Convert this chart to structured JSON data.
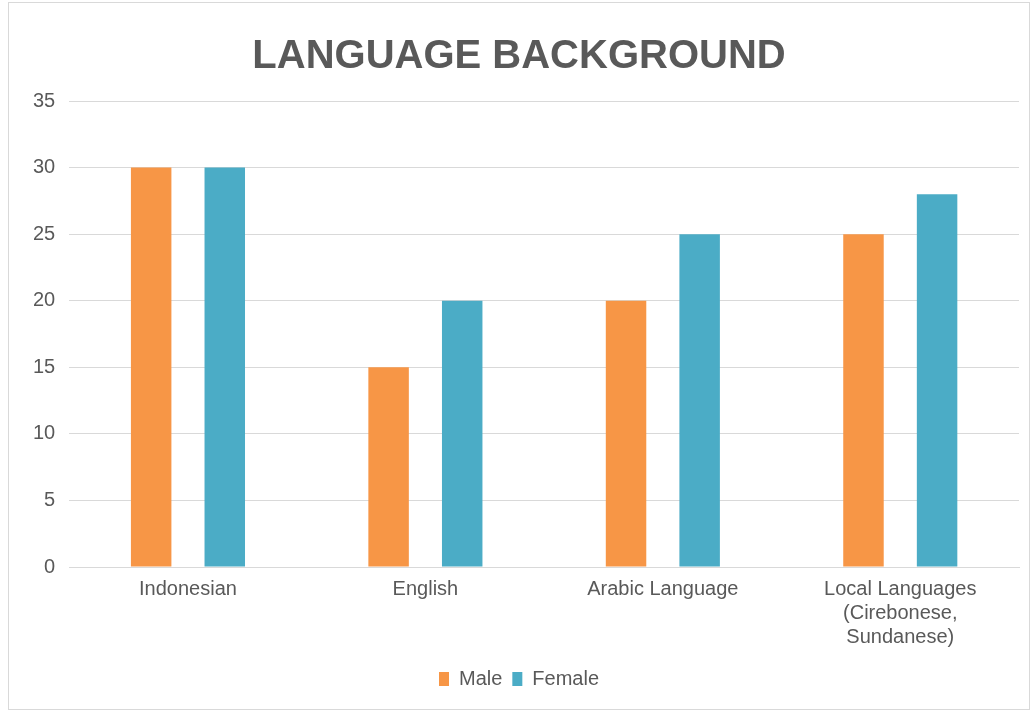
{
  "chart_data": {
    "type": "bar",
    "title": "LANGUAGE BACKGROUND",
    "categories": [
      "Indonesian",
      "English",
      "Arabic Language",
      "Local Languages (Cirebonese, Sundanese)"
    ],
    "series": [
      {
        "name": "Male",
        "color": "#f79646",
        "values": [
          30,
          15,
          20,
          25
        ]
      },
      {
        "name": "Female",
        "color": "#4bacc6",
        "values": [
          30,
          20,
          25,
          28
        ]
      }
    ],
    "ylim": [
      0,
      35
    ],
    "yticks": [
      0,
      5,
      10,
      15,
      20,
      25,
      30,
      35
    ],
    "grid": "y",
    "legend": "bottom"
  }
}
